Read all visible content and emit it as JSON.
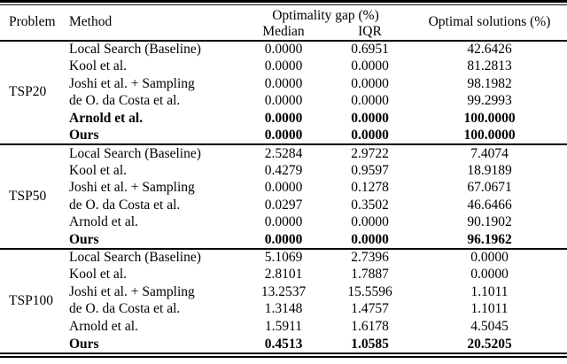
{
  "table": {
    "header": {
      "problem": "Problem",
      "method": "Method",
      "optimality_gap": "Optimality gap (%)",
      "median": "Median",
      "iqr": "IQR",
      "optimal_solutions": "Optimal solutions (%)"
    },
    "blocks": [
      {
        "problem": "TSP20",
        "rows": [
          {
            "method": "Local Search (Baseline)",
            "median": "0.0000",
            "iqr": "0.6951",
            "optimal": "42.6426"
          },
          {
            "method": "Kool et al.",
            "median": "0.0000",
            "iqr": "0.0000",
            "optimal": "81.2813"
          },
          {
            "method": "Joshi et al. + Sampling",
            "median": "0.0000",
            "iqr": "0.0000",
            "optimal": "98.1982"
          },
          {
            "method": "de O. da Costa et al.",
            "median": "0.0000",
            "iqr": "0.0000",
            "optimal": "99.2993"
          },
          {
            "method": "Arnold et al.",
            "median": "0.0000",
            "iqr": "0.0000",
            "optimal": "100.0000"
          },
          {
            "method": "Ours",
            "median": "0.0000",
            "iqr": "0.0000",
            "optimal": "100.0000"
          }
        ]
      },
      {
        "problem": "TSP50",
        "rows": [
          {
            "method": "Local Search (Baseline)",
            "median": "2.5284",
            "iqr": "2.9722",
            "optimal": "7.4074"
          },
          {
            "method": "Kool et al.",
            "median": "0.4279",
            "iqr": "0.9597",
            "optimal": "18.9189"
          },
          {
            "method": "Joshi et al. + Sampling",
            "median": "0.0000",
            "iqr": "0.1278",
            "optimal": "67.0671"
          },
          {
            "method": "de O. da Costa et al.",
            "median": "0.0297",
            "iqr": "0.3502",
            "optimal": "46.6466"
          },
          {
            "method": "Arnold et al.",
            "median": "0.0000",
            "iqr": "0.0000",
            "optimal": "90.1902"
          },
          {
            "method": "Ours",
            "median": "0.0000",
            "iqr": "0.0000",
            "optimal": "96.1962"
          }
        ]
      },
      {
        "problem": "TSP100",
        "rows": [
          {
            "method": "Local Search (Baseline)",
            "median": "5.1069",
            "iqr": "2.7396",
            "optimal": "0.0000"
          },
          {
            "method": "Kool et al.",
            "median": "2.8101",
            "iqr": "1.7887",
            "optimal": "0.0000"
          },
          {
            "method": "Joshi et al. + Sampling",
            "median": "13.2537",
            "iqr": "15.5596",
            "optimal": "1.1011"
          },
          {
            "method": "de O. da Costa et al.",
            "median": "1.3148",
            "iqr": "1.4757",
            "optimal": "1.1011"
          },
          {
            "method": "Arnold et al.",
            "median": "1.5911",
            "iqr": "1.6178",
            "optimal": "4.5045"
          },
          {
            "method": "Ours",
            "median": "0.4513",
            "iqr": "1.0585",
            "optimal": "20.5205"
          }
        ]
      }
    ]
  }
}
